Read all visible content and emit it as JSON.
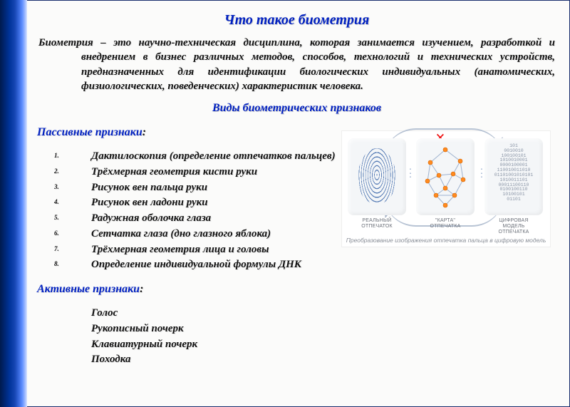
{
  "title": "Что такое биометрия",
  "definition": "Биометрия – это научно-техническая дисциплина, которая занимается изучением, разработкой и внедрением в бизнес различных методов, способов, технологий и технических устройств, предназначенных для идентификации биологических индивидуальных (анатомических, физиологических, поведенческих) характеристик человека.",
  "subtitle": "Виды биометрических признаков",
  "passive": {
    "heading_word": "Пассивные признаки",
    "heading_colon": ":",
    "items": [
      "Дактилоскопия (определение отпечатков пальцев)",
      "Трёхмерная геометрия кисти руки",
      "Рисунок вен пальца руки",
      "Рисунок вен ладони руки",
      "Радужная оболочка глаза",
      "Сетчатка глаза (дно глазного яблока)",
      "Трёхмерная геометрия лица и головы",
      "Определение индивидуальной формулы ДНК"
    ]
  },
  "active": {
    "heading_word": "Активные признаки",
    "heading_colon": ":",
    "items": [
      "Голос",
      "Рукописный почерк",
      "Клавиатурный почерк",
      "Походка"
    ]
  },
  "diagram": {
    "cap1": "РЕАЛЬНЫЙ\nОТПЕЧАТОК",
    "cap2": "\"КАРТА\"\nОТПЕЧАТКА",
    "cap3": "ЦИФРОВАЯ\nМОДЕЛЬ\nОТПЕЧАТКА",
    "bottom": "Преобразование изображения отпечатка пальца в цифровую модель",
    "binary": "101\n0010010\n100100101\n1010010001\n0000100001\n110010011010\n01101001010101\n1010011101\n00011100110\n0100100110\n10100101\n01101",
    "redx": "×",
    "node_color": "#ff8a1f",
    "edge_color": "#9eb2cf",
    "panel_bg": "#f4f6f8"
  },
  "colors": {
    "heading": "#0020c0",
    "body": "#111111",
    "shadow": "#e2e2e2",
    "page_bg": "#fbfbfa",
    "border": "#1a2f6e"
  }
}
